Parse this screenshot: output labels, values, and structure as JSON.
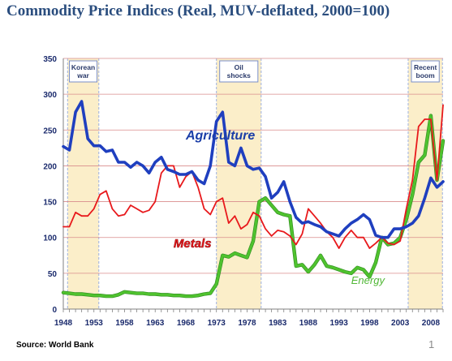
{
  "title": "Commodity Price Indices (Real, MUV-deflated, 2000=100)",
  "source": "Source: World Bank",
  "page_number": "1",
  "colors": {
    "agriculture": "#1f3fbf",
    "metals": "#e8191c",
    "energy": "#4fc22e",
    "agriculture_label": "#1b3ea8",
    "metals_label": "#e8191c",
    "energy_label": "#52b837",
    "gridline": "#d98c8c",
    "band_fill": "#fbeec9",
    "band_border": "#9db0e0"
  },
  "chart_data": {
    "type": "line",
    "title": "Commodity Price Indices (Real, MUV-deflated, 2000=100)",
    "xlabel": "",
    "ylabel": "",
    "ylim": [
      0,
      350
    ],
    "xlim": [
      1948,
      2010
    ],
    "x_ticks": [
      1948,
      1953,
      1958,
      1963,
      1968,
      1973,
      1978,
      1983,
      1988,
      1993,
      1998,
      2003,
      2008
    ],
    "y_ticks": [
      0,
      50,
      100,
      150,
      200,
      250,
      300,
      350
    ],
    "grid": true,
    "shaded_periods": [
      {
        "label": "Korean war",
        "start": 1948.7,
        "end": 1953.8
      },
      {
        "label": "Oil shocks",
        "start": 1973,
        "end": 1980.3
      },
      {
        "label": "Recent boom",
        "start": 2004.3,
        "end": 2009.9
      }
    ],
    "series": [
      {
        "name": "Agriculture",
        "x": [
          1948,
          1949,
          1950,
          1951,
          1952,
          1953,
          1954,
          1955,
          1956,
          1957,
          1958,
          1959,
          1960,
          1961,
          1962,
          1963,
          1964,
          1965,
          1966,
          1967,
          1968,
          1969,
          1970,
          1971,
          1972,
          1973,
          1974,
          1975,
          1976,
          1977,
          1978,
          1979,
          1980,
          1981,
          1982,
          1983,
          1984,
          1985,
          1986,
          1987,
          1988,
          1989,
          1990,
          1991,
          1992,
          1993,
          1994,
          1995,
          1996,
          1997,
          1998,
          1999,
          2000,
          2001,
          2002,
          2003,
          2004,
          2005,
          2006,
          2007,
          2008,
          2009,
          2010
        ],
        "values": [
          227,
          222,
          275,
          290,
          238,
          228,
          228,
          220,
          222,
          205,
          205,
          198,
          205,
          200,
          190,
          205,
          212,
          195,
          192,
          188,
          188,
          192,
          180,
          175,
          200,
          262,
          275,
          205,
          200,
          225,
          200,
          195,
          197,
          185,
          155,
          163,
          178,
          150,
          128,
          120,
          122,
          118,
          115,
          108,
          105,
          102,
          112,
          120,
          125,
          132,
          125,
          103,
          100,
          100,
          112,
          112,
          115,
          120,
          130,
          155,
          183,
          170,
          178
        ]
      },
      {
        "name": "Metals",
        "x": [
          1948,
          1949,
          1950,
          1951,
          1952,
          1953,
          1954,
          1955,
          1956,
          1957,
          1958,
          1959,
          1960,
          1961,
          1962,
          1963,
          1964,
          1965,
          1966,
          1967,
          1968,
          1969,
          1970,
          1971,
          1972,
          1973,
          1974,
          1975,
          1976,
          1977,
          1978,
          1979,
          1980,
          1981,
          1982,
          1983,
          1984,
          1985,
          1986,
          1987,
          1988,
          1989,
          1990,
          1991,
          1992,
          1993,
          1994,
          1995,
          1996,
          1997,
          1998,
          1999,
          2000,
          2001,
          2002,
          2003,
          2004,
          2005,
          2006,
          2007,
          2008,
          2009,
          2010
        ],
        "values": [
          115,
          115,
          135,
          130,
          130,
          140,
          160,
          165,
          140,
          130,
          132,
          145,
          140,
          135,
          138,
          150,
          190,
          200,
          200,
          170,
          185,
          192,
          170,
          140,
          132,
          150,
          155,
          120,
          130,
          112,
          118,
          135,
          130,
          112,
          102,
          110,
          108,
          102,
          90,
          105,
          140,
          130,
          120,
          108,
          100,
          85,
          100,
          110,
          100,
          100,
          85,
          92,
          100,
          92,
          90,
          95,
          140,
          180,
          255,
          265,
          265,
          180,
          285
        ]
      },
      {
        "name": "Energy",
        "x": [
          1948,
          1949,
          1950,
          1951,
          1952,
          1953,
          1954,
          1955,
          1956,
          1957,
          1958,
          1959,
          1960,
          1961,
          1962,
          1963,
          1964,
          1965,
          1966,
          1967,
          1968,
          1969,
          1970,
          1971,
          1972,
          1973,
          1974,
          1975,
          1976,
          1977,
          1978,
          1979,
          1980,
          1981,
          1982,
          1983,
          1984,
          1985,
          1986,
          1987,
          1988,
          1989,
          1990,
          1991,
          1992,
          1993,
          1994,
          1995,
          1996,
          1997,
          1998,
          1999,
          2000,
          2001,
          2002,
          2003,
          2004,
          2005,
          2006,
          2007,
          2008,
          2009,
          2010
        ],
        "values": [
          23,
          22,
          21,
          21,
          20,
          19,
          19,
          18,
          18,
          20,
          24,
          23,
          22,
          22,
          21,
          21,
          20,
          20,
          19,
          19,
          18,
          18,
          19,
          21,
          22,
          35,
          75,
          73,
          78,
          75,
          72,
          95,
          150,
          155,
          145,
          135,
          132,
          130,
          60,
          62,
          52,
          62,
          75,
          60,
          58,
          55,
          52,
          50,
          58,
          55,
          45,
          65,
          100,
          90,
          92,
          100,
          125,
          160,
          205,
          215,
          270,
          180,
          235
        ]
      }
    ],
    "annotations": [
      {
        "text": "Agriculture",
        "x": 1968,
        "y": 237
      },
      {
        "text": "Metals",
        "x": 1966,
        "y": 86
      },
      {
        "text": "Energy",
        "x": 1995,
        "y": 35
      }
    ]
  }
}
